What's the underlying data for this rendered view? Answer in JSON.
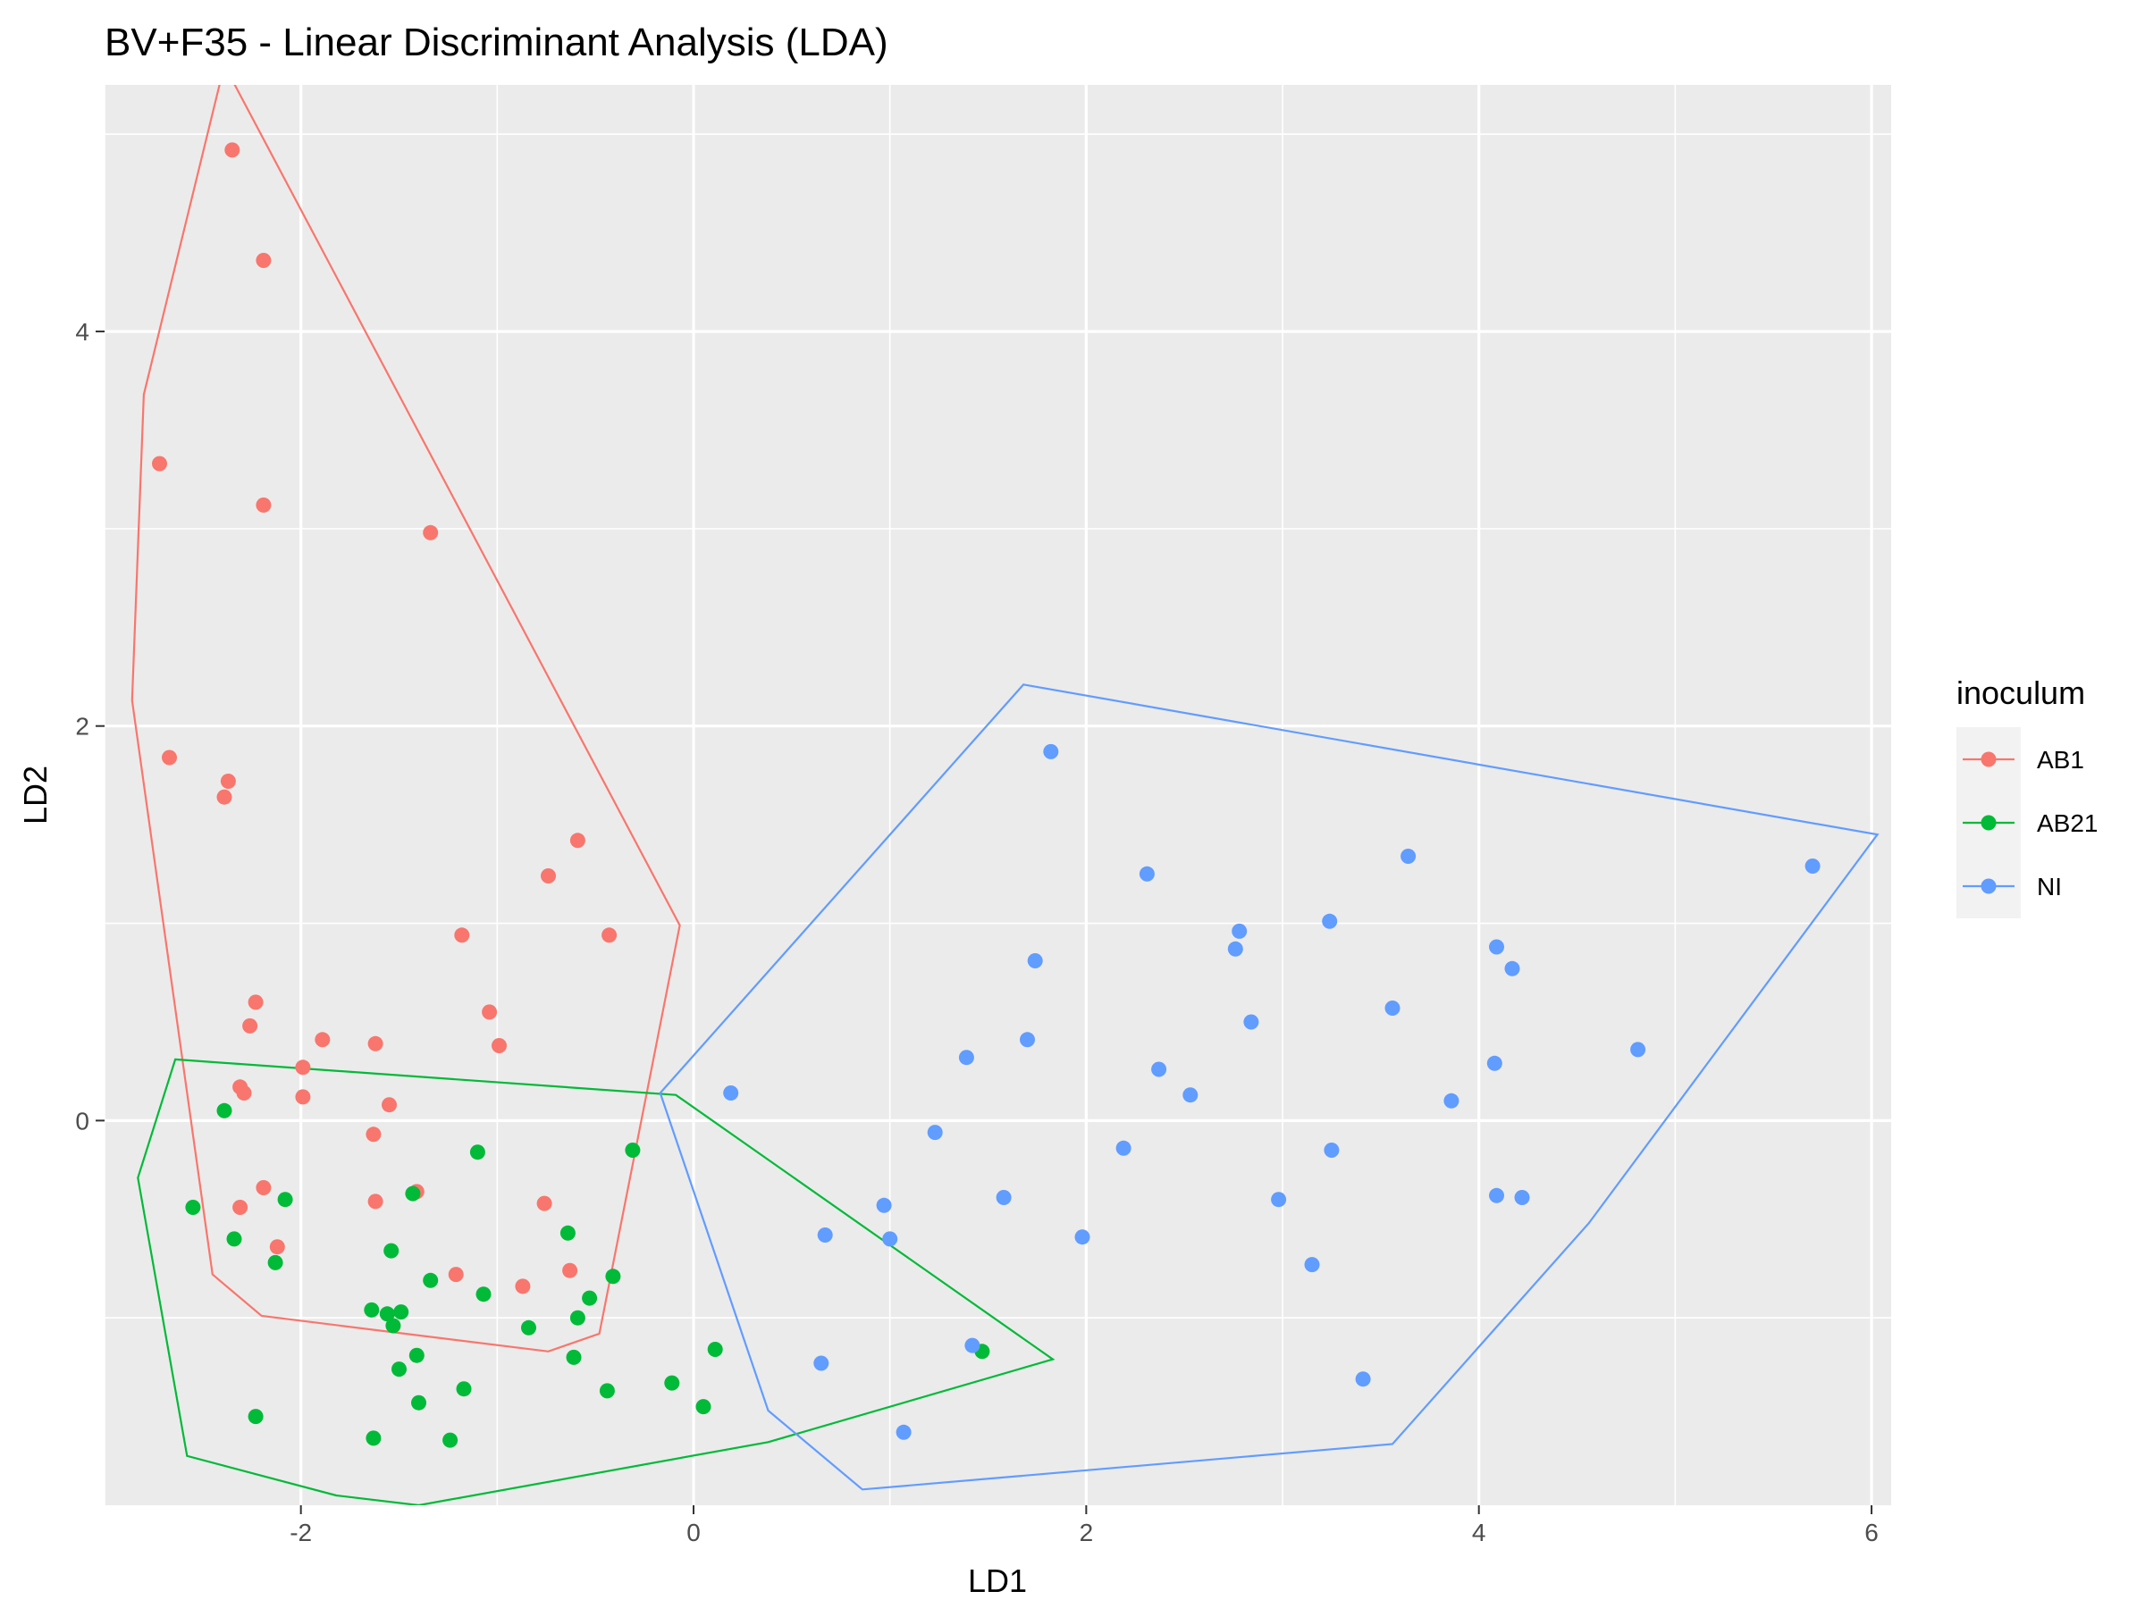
{
  "chart_data": {
    "type": "scatter",
    "title": "BV+F35 - Linear Discriminant Analysis (LDA)",
    "xlabel": "LD1",
    "ylabel": "LD2",
    "xlim": [
      -3.0,
      6.1
    ],
    "ylim": [
      -1.95,
      5.25
    ],
    "x_ticks": [
      -2,
      0,
      2,
      4,
      6
    ],
    "y_ticks": [
      0,
      2,
      4
    ],
    "x_tick_labels": [
      "-2",
      "0",
      "2",
      "4",
      "6"
    ],
    "y_tick_labels": [
      "0",
      "2",
      "4"
    ],
    "grid": true,
    "background": "#ebebeb",
    "legend": {
      "title": "inoculum",
      "placement": "right"
    },
    "series": [
      {
        "name": "AB1",
        "color": "#f8766d",
        "points": [
          [
            -2.35,
            4.92
          ],
          [
            -2.19,
            4.36
          ],
          [
            -2.72,
            3.33
          ],
          [
            -2.19,
            3.12
          ],
          [
            -1.34,
            2.98
          ],
          [
            -2.67,
            1.84
          ],
          [
            -2.37,
            1.72
          ],
          [
            -2.39,
            1.64
          ],
          [
            -0.59,
            1.42
          ],
          [
            -0.74,
            1.24
          ],
          [
            -1.18,
            0.94
          ],
          [
            -0.43,
            0.94
          ],
          [
            -2.23,
            0.6
          ],
          [
            -1.04,
            0.55
          ],
          [
            -2.26,
            0.48
          ],
          [
            -1.89,
            0.41
          ],
          [
            -1.62,
            0.39
          ],
          [
            -0.99,
            0.38
          ],
          [
            -1.99,
            0.27
          ],
          [
            -2.31,
            0.17
          ],
          [
            -2.29,
            0.14
          ],
          [
            -1.99,
            0.12
          ],
          [
            -1.55,
            0.08
          ],
          [
            -1.63,
            -0.07
          ],
          [
            -2.19,
            -0.34
          ],
          [
            -1.41,
            -0.36
          ],
          [
            -1.62,
            -0.41
          ],
          [
            -0.76,
            -0.42
          ],
          [
            -2.31,
            -0.44
          ],
          [
            -2.12,
            -0.64
          ],
          [
            -1.21,
            -0.78
          ],
          [
            -0.87,
            -0.84
          ],
          [
            -0.63,
            -0.76
          ]
        ],
        "hull": [
          [
            -2.39,
            5.35
          ],
          [
            -0.07,
            0.99
          ],
          [
            -0.48,
            -1.08
          ],
          [
            -0.74,
            -1.17
          ],
          [
            -2.2,
            -0.99
          ],
          [
            -2.45,
            -0.78
          ],
          [
            -2.86,
            2.13
          ],
          [
            -2.8,
            3.68
          ]
        ]
      },
      {
        "name": "AB21",
        "color": "#00ba38",
        "points": [
          [
            -2.39,
            0.05
          ],
          [
            -2.55,
            -0.44
          ],
          [
            -2.34,
            -0.6
          ],
          [
            -2.08,
            -0.4
          ],
          [
            -2.13,
            -0.72
          ],
          [
            -1.1,
            -0.16
          ],
          [
            -0.31,
            -0.15
          ],
          [
            -1.43,
            -0.37
          ],
          [
            -0.64,
            -0.57
          ],
          [
            -1.54,
            -0.66
          ],
          [
            -1.34,
            -0.81
          ],
          [
            -1.07,
            -0.88
          ],
          [
            -0.41,
            -0.79
          ],
          [
            -0.53,
            -0.9
          ],
          [
            -1.64,
            -0.96
          ],
          [
            -1.49,
            -0.97
          ],
          [
            -1.56,
            -0.98
          ],
          [
            -1.53,
            -1.04
          ],
          [
            -0.59,
            -1.0
          ],
          [
            -0.84,
            -1.05
          ],
          [
            0.11,
            -1.16
          ],
          [
            1.47,
            -1.17
          ],
          [
            -1.41,
            -1.19
          ],
          [
            -0.61,
            -1.2
          ],
          [
            -1.5,
            -1.26
          ],
          [
            -0.44,
            -1.37
          ],
          [
            -0.11,
            -1.33
          ],
          [
            -1.17,
            -1.36
          ],
          [
            -1.4,
            -1.43
          ],
          [
            0.05,
            -1.45
          ],
          [
            -2.23,
            -1.5
          ],
          [
            -1.63,
            -1.61
          ],
          [
            -1.24,
            -1.62
          ]
        ],
        "hull": [
          [
            -2.64,
            0.31
          ],
          [
            -0.09,
            0.13
          ],
          [
            1.83,
            -1.21
          ],
          [
            0.38,
            -1.63
          ],
          [
            -1.4,
            -1.95
          ],
          [
            -1.82,
            -1.9
          ],
          [
            -2.58,
            -1.7
          ],
          [
            -2.83,
            -0.29
          ]
        ]
      },
      {
        "name": "NI",
        "color": "#619cff",
        "points": [
          [
            1.82,
            1.87
          ],
          [
            3.64,
            1.34
          ],
          [
            5.7,
            1.29
          ],
          [
            2.31,
            1.25
          ],
          [
            3.24,
            1.01
          ],
          [
            2.78,
            0.96
          ],
          [
            4.09,
            0.88
          ],
          [
            2.76,
            0.87
          ],
          [
            1.74,
            0.81
          ],
          [
            4.17,
            0.77
          ],
          [
            3.56,
            0.57
          ],
          [
            2.84,
            0.5
          ],
          [
            1.7,
            0.41
          ],
          [
            4.81,
            0.36
          ],
          [
            1.39,
            0.32
          ],
          [
            4.08,
            0.29
          ],
          [
            2.37,
            0.26
          ],
          [
            0.19,
            0.14
          ],
          [
            2.53,
            0.13
          ],
          [
            3.86,
            0.1
          ],
          [
            1.23,
            -0.06
          ],
          [
            2.19,
            -0.14
          ],
          [
            3.25,
            -0.15
          ],
          [
            0.97,
            -0.43
          ],
          [
            1.58,
            -0.39
          ],
          [
            2.98,
            -0.4
          ],
          [
            4.09,
            -0.38
          ],
          [
            4.22,
            -0.39
          ],
          [
            0.67,
            -0.58
          ],
          [
            1.0,
            -0.6
          ],
          [
            1.98,
            -0.59
          ],
          [
            3.15,
            -0.73
          ],
          [
            1.42,
            -1.14
          ],
          [
            0.65,
            -1.23
          ],
          [
            3.41,
            -1.31
          ],
          [
            1.07,
            -1.58
          ]
        ],
        "hull": [
          [
            1.68,
            2.21
          ],
          [
            6.03,
            1.45
          ],
          [
            4.56,
            -0.52
          ],
          [
            3.56,
            -1.64
          ],
          [
            0.86,
            -1.87
          ],
          [
            0.38,
            -1.47
          ],
          [
            -0.17,
            0.14
          ]
        ]
      }
    ]
  }
}
